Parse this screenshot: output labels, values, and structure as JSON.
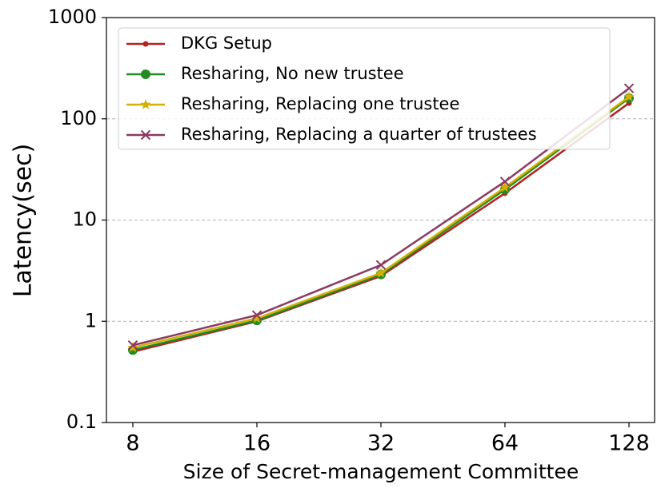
{
  "chart_data": {
    "type": "line",
    "x_label": "Size of Secret-management Committee",
    "y_label": "Latency(sec)",
    "categories": [
      "8",
      "16",
      "32",
      "64",
      "128"
    ],
    "series": [
      {
        "name": "DKG Setup",
        "color": "#b22222",
        "marker": "dot",
        "values": [
          0.5,
          1.0,
          2.8,
          18.4,
          143
        ]
      },
      {
        "name": "Resharing, No new trustee",
        "color": "#228b22",
        "marker": "circle",
        "values": [
          0.52,
          1.02,
          2.9,
          20,
          160
        ]
      },
      {
        "name": "Resharing, Replacing one trustee",
        "color": "#d4b000",
        "marker": "star",
        "values": [
          0.55,
          1.07,
          3.0,
          21,
          165
        ]
      },
      {
        "name": "Resharing, Replacing a quarter of trustees",
        "color": "#8b3a62",
        "marker": "x",
        "values": [
          0.58,
          1.15,
          3.6,
          24,
          200
        ]
      }
    ],
    "ylim": [
      0.1,
      1000
    ],
    "yticks": [
      0.1,
      1,
      10,
      100,
      1000
    ],
    "log_y": true,
    "grid": true,
    "legend": "upper left"
  }
}
